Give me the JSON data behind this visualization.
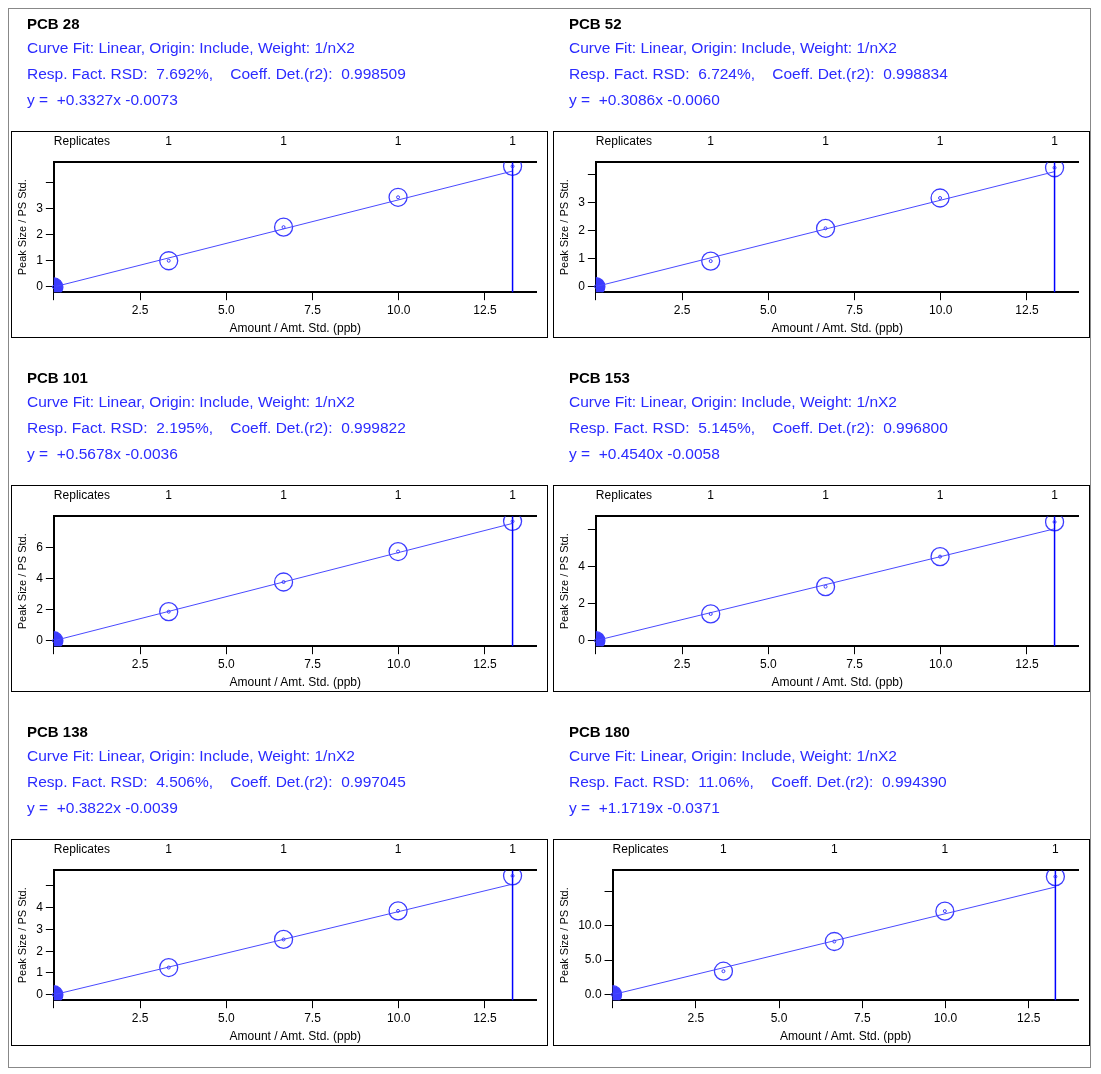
{
  "chart_data": [
    {
      "type": "scatter",
      "title": "PCB 28",
      "subtitle": "Curve Fit: Linear, Origin: Include, Weight: 1/nX2\nResp. Fact. RSD:  7.692%,    Coeff. Det.(r2):  0.998509\ny =  +0.3327x -0.0073",
      "annotations": [
        "1",
        "1",
        "1",
        "1"
      ],
      "xlabel": "Amount / Amt. Std. (ppb)",
      "ylabel": "Peak Size / PS Std.",
      "x2label": "Replicates",
      "marker": "circle",
      "xlim": [
        0,
        14
      ],
      "xticks": [
        {
          "value": 0,
          "label": null
        },
        2.5,
        {
          "value": 5,
          "label": "5.0"
        },
        7.5,
        {
          "value": 10,
          "label": "10.0"
        },
        12.5
      ],
      "ylim": [
        -0.2,
        4.75
      ],
      "yticks": [
        0,
        1,
        2,
        3,
        {
          "value": 4,
          "label": null
        }
      ],
      "ref_lines": [
        {
          "axis": "x",
          "value": 13.3,
          "color": "#0000ff"
        }
      ],
      "series": [
        {
          "type": "line",
          "color": "#4a4aff",
          "x": [
            0,
            13.3
          ],
          "values": [
            0,
            4.42
          ]
        },
        {
          "type": "scatter",
          "color": "#3c3cff",
          "x": [
            0,
            3.33,
            6.66,
            9.98,
            13.3
          ],
          "values": [
            0,
            1.0,
            2.28,
            3.42,
            4.6
          ]
        }
      ]
    },
    {
      "type": "scatter",
      "title": "PCB 52",
      "subtitle": "Curve Fit: Linear, Origin: Include, Weight: 1/nX2\nResp. Fact. RSD:  6.724%,    Coeff. Det.(r2):  0.998834\ny =  +0.3086x -0.0060",
      "annotations": [
        "1",
        "1",
        "1",
        "1"
      ],
      "xlabel": "Amount / Amt. Std. (ppb)",
      "ylabel": "Peak Size / PS Std.",
      "x2label": "Replicates",
      "marker": "circle",
      "xlim": [
        0,
        14
      ],
      "xticks": [
        {
          "value": 0,
          "label": null
        },
        2.5,
        {
          "value": 5,
          "label": "5.0"
        },
        7.5,
        {
          "value": 10,
          "label": "10.0"
        },
        12.5
      ],
      "ylim": [
        -0.2,
        4.43
      ],
      "yticks": [
        0,
        1,
        2,
        3,
        {
          "value": 4,
          "label": null
        }
      ],
      "ref_lines": [
        {
          "axis": "x",
          "value": 13.3,
          "color": "#0000ff"
        }
      ],
      "series": [
        {
          "type": "line",
          "color": "#4a4aff",
          "x": [
            0,
            13.3
          ],
          "values": [
            0,
            4.1
          ]
        },
        {
          "type": "scatter",
          "color": "#3c3cff",
          "x": [
            0,
            3.33,
            6.66,
            9.98,
            13.3
          ],
          "values": [
            0,
            0.91,
            2.08,
            3.16,
            4.24
          ]
        }
      ]
    },
    {
      "type": "scatter",
      "title": "PCB 101",
      "subtitle": "Curve Fit: Linear, Origin: Include, Weight: 1/nX2\nResp. Fact. RSD:  2.195%,    Coeff. Det.(r2):  0.999822\ny =  +0.5678x -0.0036",
      "annotations": [
        "1",
        "1",
        "1",
        "1"
      ],
      "xlabel": "Amount / Amt. Std. (ppb)",
      "ylabel": "Peak Size / PS Std.",
      "x2label": "Replicates",
      "marker": "circle",
      "xlim": [
        0,
        14
      ],
      "xticks": [
        {
          "value": 0,
          "label": null
        },
        2.5,
        {
          "value": 5,
          "label": "5.0"
        },
        7.5,
        {
          "value": 10,
          "label": "10.0"
        },
        12.5
      ],
      "ylim": [
        -0.35,
        8.0
      ],
      "yticks": [
        0,
        2,
        4,
        6
      ],
      "ref_lines": [
        {
          "axis": "x",
          "value": 13.3,
          "color": "#0000ff"
        }
      ],
      "series": [
        {
          "type": "line",
          "color": "#4a4aff",
          "x": [
            0,
            13.3
          ],
          "values": [
            0,
            7.55
          ]
        },
        {
          "type": "scatter",
          "color": "#3c3cff",
          "x": [
            0,
            3.33,
            6.66,
            9.98,
            13.3
          ],
          "values": [
            0,
            1.87,
            3.78,
            5.74,
            7.68
          ]
        }
      ]
    },
    {
      "type": "scatter",
      "title": "PCB 153",
      "subtitle": "Curve Fit: Linear, Origin: Include, Weight: 1/nX2\nResp. Fact. RSD:  5.145%,    Coeff. Det.(r2):  0.996800\ny =  +0.4540x -0.0058",
      "annotations": [
        "1",
        "1",
        "1",
        "1"
      ],
      "xlabel": "Amount / Amt. Std. (ppb)",
      "ylabel": "Peak Size / PS Std.",
      "x2label": "Replicates",
      "marker": "circle",
      "xlim": [
        0,
        14
      ],
      "xticks": [
        {
          "value": 0,
          "label": null
        },
        2.5,
        {
          "value": 5,
          "label": "5.0"
        },
        7.5,
        {
          "value": 10,
          "label": "10.0"
        },
        12.5
      ],
      "ylim": [
        -0.3,
        6.7
      ],
      "yticks": [
        0,
        2,
        4,
        {
          "value": 6,
          "label": null
        }
      ],
      "ref_lines": [
        {
          "axis": "x",
          "value": 13.3,
          "color": "#0000ff"
        }
      ],
      "series": [
        {
          "type": "line",
          "color": "#4a4aff",
          "x": [
            0,
            13.3
          ],
          "values": [
            0,
            6.03
          ]
        },
        {
          "type": "scatter",
          "color": "#3c3cff",
          "x": [
            0,
            3.33,
            6.66,
            9.98,
            13.3
          ],
          "values": [
            0,
            1.44,
            2.91,
            4.53,
            6.4
          ]
        }
      ]
    },
    {
      "type": "scatter",
      "title": "PCB 138",
      "subtitle": "Curve Fit: Linear, Origin: Include, Weight: 1/nX2\nResp. Fact. RSD:  4.506%,    Coeff. Det.(r2):  0.997045\ny =  +0.3822x -0.0039",
      "annotations": [
        "1",
        "1",
        "1",
        "1"
      ],
      "xlabel": "Amount / Amt. Std. (ppb)",
      "ylabel": "Peak Size / PS Std.",
      "x2label": "Replicates",
      "marker": "circle",
      "xlim": [
        0,
        14
      ],
      "xticks": [
        {
          "value": 0,
          "label": null
        },
        2.5,
        {
          "value": 5,
          "label": "5.0"
        },
        7.5,
        {
          "value": 10,
          "label": "10.0"
        },
        12.5
      ],
      "ylim": [
        -0.25,
        5.71
      ],
      "yticks": [
        0,
        1,
        2,
        3,
        4,
        {
          "value": 5,
          "label": null
        }
      ],
      "ref_lines": [
        {
          "axis": "x",
          "value": 13.3,
          "color": "#0000ff"
        }
      ],
      "series": [
        {
          "type": "line",
          "color": "#4a4aff",
          "x": [
            0,
            13.3
          ],
          "values": [
            0,
            5.08
          ]
        },
        {
          "type": "scatter",
          "color": "#3c3cff",
          "x": [
            0,
            3.33,
            6.66,
            9.98,
            13.3
          ],
          "values": [
            0,
            1.25,
            2.54,
            3.85,
            5.46
          ]
        }
      ]
    },
    {
      "type": "scatter",
      "title": "PCB 180",
      "subtitle": "Curve Fit: Linear, Origin: Include, Weight: 1/nX2\nResp. Fact. RSD:  11.06%,    Coeff. Det.(r2):  0.994390\ny =  +1.1719x -0.0371",
      "annotations": [
        "1",
        "1",
        "1",
        "1"
      ],
      "xlabel": "Amount / Amt. Std. (ppb)",
      "ylabel": "Peak Size / PS Std.",
      "x2label": "Replicates",
      "marker": "circle",
      "xlim": [
        0,
        14
      ],
      "xticks": [
        {
          "value": 0,
          "label": null
        },
        2.5,
        {
          "value": 5,
          "label": "5.0"
        },
        7.5,
        {
          "value": 10,
          "label": "10.0"
        },
        12.5
      ],
      "ylim": [
        -0.8,
        18.0
      ],
      "yticks": [
        {
          "value": 0,
          "label": "0.0"
        },
        {
          "value": 5,
          "label": "5.0"
        },
        {
          "value": 10,
          "label": "10.0"
        },
        {
          "value": 15,
          "label": null
        }
      ],
      "ref_lines": [
        {
          "axis": "x",
          "value": 13.3,
          "color": "#0000ff"
        }
      ],
      "series": [
        {
          "type": "line",
          "color": "#4a4aff",
          "x": [
            0,
            13.3
          ],
          "values": [
            0,
            15.6
          ]
        },
        {
          "type": "scatter",
          "color": "#3c3cff",
          "x": [
            0,
            3.33,
            6.66,
            9.98,
            13.3
          ],
          "values": [
            0,
            3.4,
            7.7,
            12.1,
            17.1
          ]
        }
      ]
    }
  ]
}
